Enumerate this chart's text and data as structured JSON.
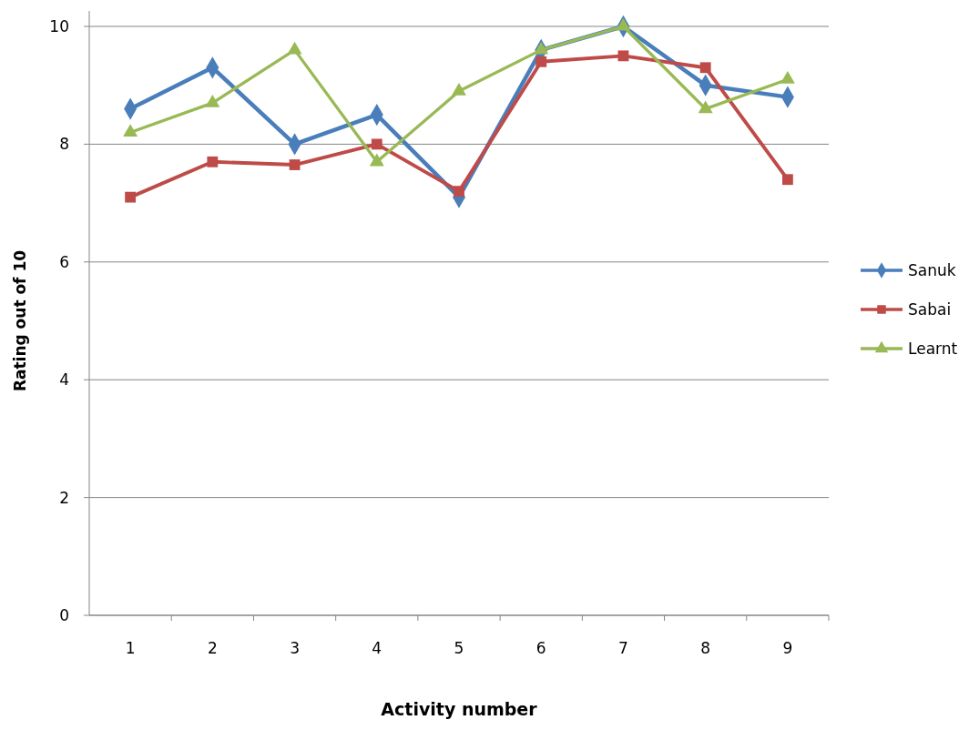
{
  "chart_data": {
    "type": "line",
    "xlabel": "Activity number",
    "ylabel": "Rating out of 10",
    "categories": [
      "1",
      "2",
      "3",
      "4",
      "5",
      "6",
      "7",
      "8",
      "9"
    ],
    "series": [
      {
        "name": "Sanuk",
        "color": "#4a7ebb",
        "marker": "diamond",
        "values": [
          8.6,
          9.3,
          8.0,
          8.5,
          7.1,
          9.6,
          10.0,
          9.0,
          8.8
        ]
      },
      {
        "name": "Sabai",
        "color": "#be4b48",
        "marker": "square",
        "values": [
          7.1,
          7.7,
          7.65,
          8.0,
          7.2,
          9.4,
          9.5,
          9.3,
          7.4
        ]
      },
      {
        "name": "Learnt",
        "color": "#98b954",
        "marker": "triangle",
        "values": [
          8.2,
          8.7,
          9.6,
          7.7,
          8.9,
          9.6,
          10.0,
          8.6,
          9.1
        ]
      }
    ],
    "ylim": [
      0,
      10
    ],
    "yticks": [
      0,
      2,
      4,
      6,
      8,
      10
    ],
    "grid": "y",
    "legend": "right"
  }
}
